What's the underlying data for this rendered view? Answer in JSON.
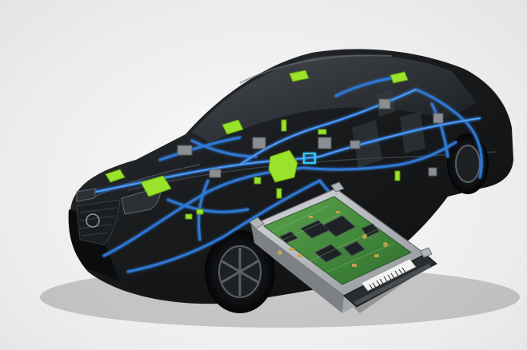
{
  "image": {
    "subject": "car-wiring-harness-with-ecu",
    "colors": {
      "background": "#efefef",
      "car_body": "#101214",
      "car_highlight": "#3a3f44",
      "wiring": "#2f78d4",
      "wiring_glow": "#6fb0ff",
      "connector_green": "#9be22a",
      "connector_gray": "#8a8e92",
      "ecu_housing": "#b9bcc0",
      "pcb": "#3f8f3a",
      "chip": "#1e2226",
      "label": "#f2f2f2"
    }
  },
  "ecu": {
    "label_text": "",
    "barcode": true
  }
}
